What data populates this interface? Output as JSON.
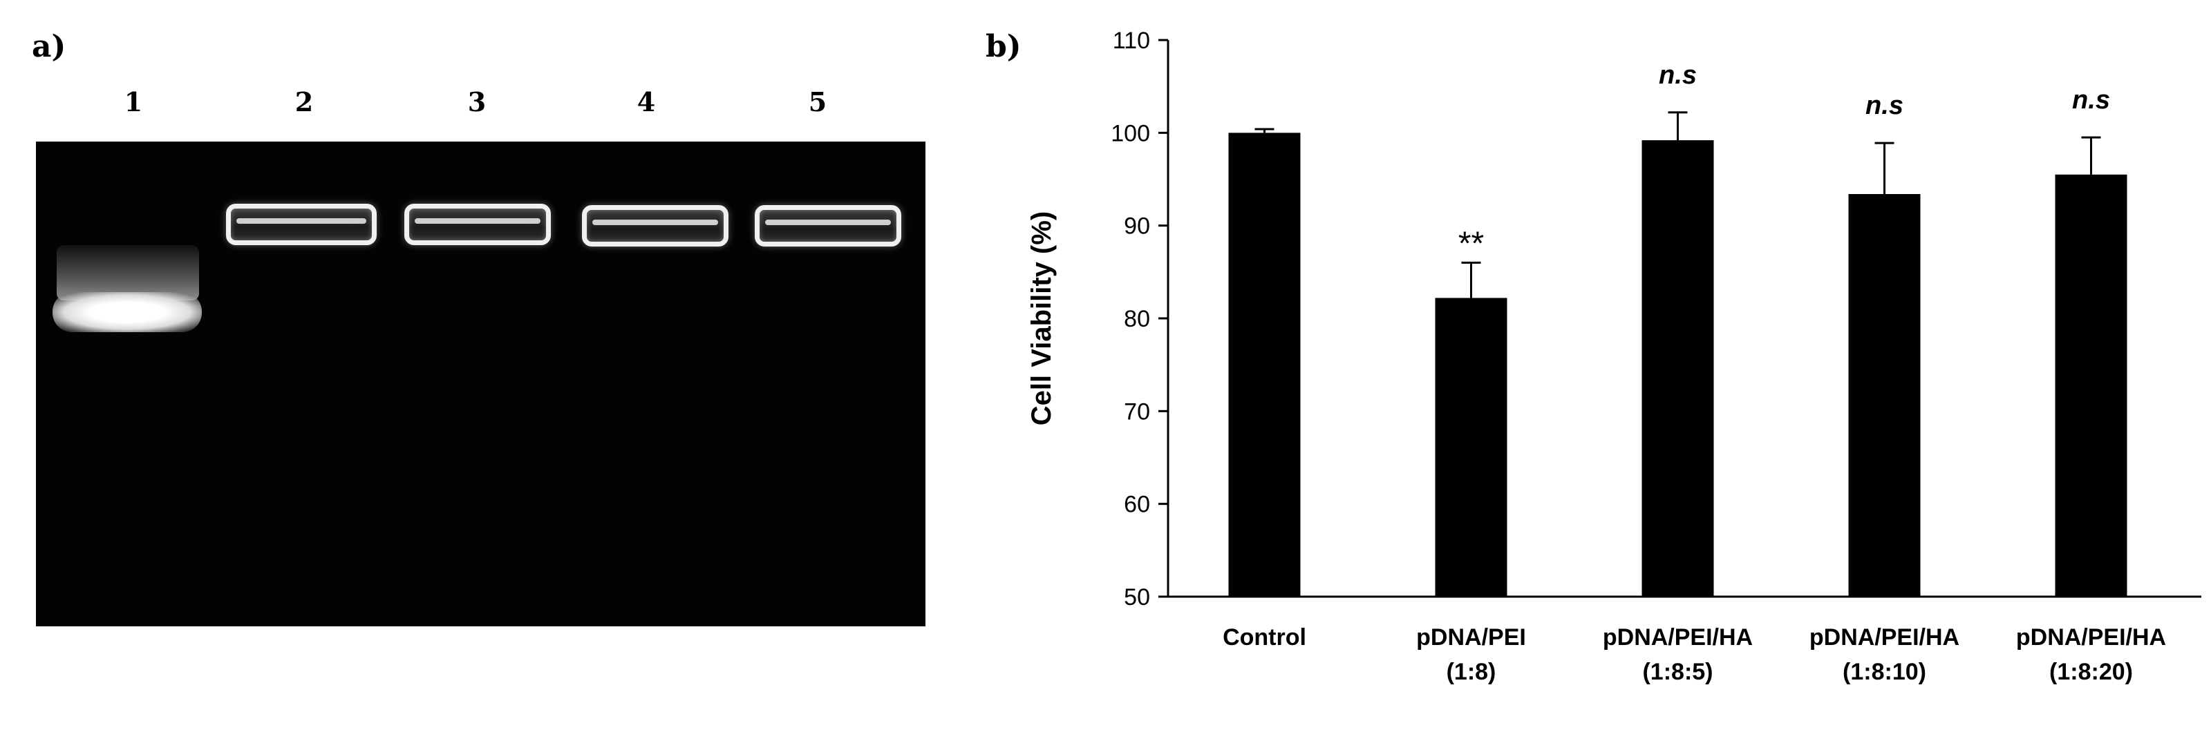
{
  "panel_a": {
    "label": "a)",
    "lanes": [
      "1",
      "2",
      "3",
      "4",
      "5"
    ]
  },
  "panel_b": {
    "label": "b)"
  },
  "chart_data": {
    "type": "bar",
    "ylabel": "Cell Viability (%)",
    "xlabel": "",
    "ylim": [
      50,
      110
    ],
    "yticks": [
      50,
      60,
      70,
      80,
      90,
      100,
      110
    ],
    "categories": [
      [
        "Control"
      ],
      [
        "pDNA/PEI",
        "(1:8)"
      ],
      [
        "pDNA/PEI/HA",
        "(1:8:5)"
      ],
      [
        "pDNA/PEI/HA",
        "(1:8:10)"
      ],
      [
        "pDNA/PEI/HA",
        "(1:8:20)"
      ]
    ],
    "values": [
      100.0,
      82.2,
      99.2,
      93.4,
      95.5
    ],
    "errors": [
      0.4,
      3.8,
      3.0,
      5.5,
      4.0
    ],
    "annotations": [
      "",
      "**",
      "n.s",
      "n.s",
      "n.s"
    ],
    "bar_color": "#000000",
    "grid": false
  }
}
